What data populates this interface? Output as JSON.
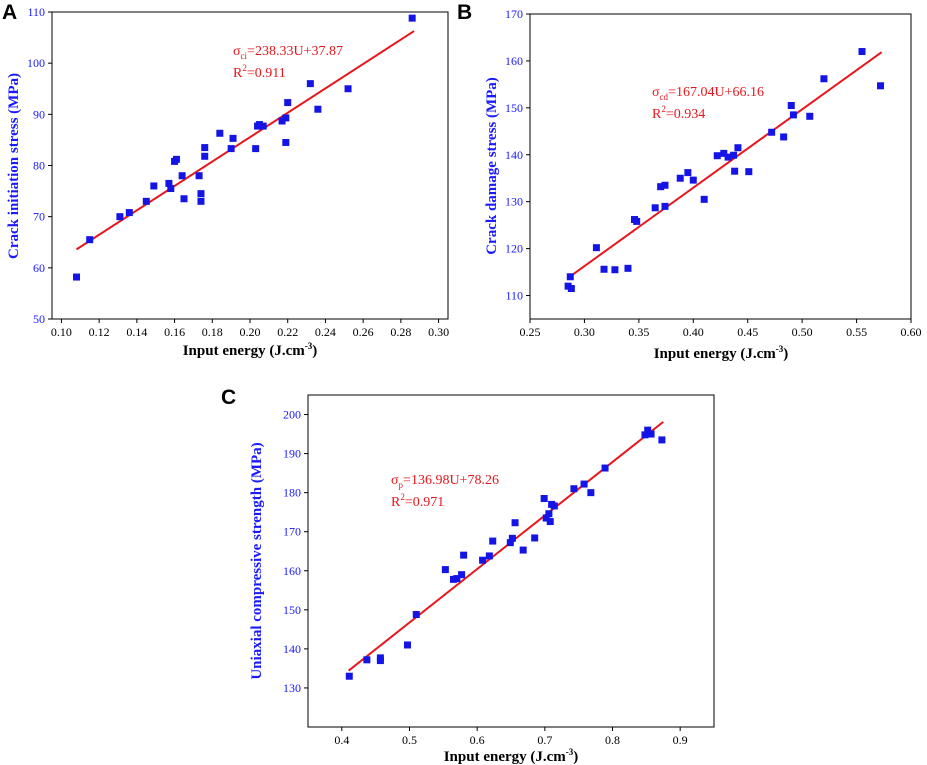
{
  "colors": {
    "points": "#1414e6",
    "fit": "#e8161c",
    "yaxis": "#1a1aff",
    "frame": "#000000"
  },
  "chart_data": [
    {
      "panel": "A",
      "type": "scatter",
      "xlabel": "Input energy (J.cm",
      "xlabel_sup": "-3",
      "xlabel_end": ")",
      "ylabel": "Crack initiation stress (MPa)",
      "xlim": [
        0.095,
        0.305
      ],
      "ylim": [
        50,
        110
      ],
      "xticks": [
        0.1,
        0.12,
        0.14,
        0.16,
        0.18,
        0.2,
        0.22,
        0.24,
        0.26,
        0.28,
        0.3
      ],
      "xtick_labels": [
        "0.10",
        "0.12",
        "0.14",
        "0.16",
        "0.18",
        "0.20",
        "0.22",
        "0.24",
        "0.26",
        "0.28",
        "0.30"
      ],
      "yticks": [
        50,
        60,
        70,
        80,
        90,
        100,
        110
      ],
      "ytick_labels": [
        "50",
        "60",
        "70",
        "80",
        "90",
        "100",
        "110"
      ],
      "eq_symbol": "σ",
      "eq_sub": "ci",
      "eq_rest": "=238.33U+37.87",
      "r2_prefix": "R",
      "r2_sup": "2",
      "r2_rest": "=0.911",
      "fit": {
        "slope": 238.33,
        "intercept": 37.87,
        "x_range": [
          0.108,
          0.287
        ]
      },
      "points": [
        [
          0.108,
          58.2
        ],
        [
          0.115,
          65.5
        ],
        [
          0.131,
          70.0
        ],
        [
          0.136,
          70.8
        ],
        [
          0.145,
          73.0
        ],
        [
          0.149,
          76.0
        ],
        [
          0.157,
          76.5
        ],
        [
          0.158,
          75.5
        ],
        [
          0.16,
          80.8
        ],
        [
          0.161,
          81.2
        ],
        [
          0.164,
          78.0
        ],
        [
          0.165,
          73.5
        ],
        [
          0.173,
          78.0
        ],
        [
          0.174,
          74.5
        ],
        [
          0.174,
          73.0
        ],
        [
          0.176,
          81.8
        ],
        [
          0.176,
          83.5
        ],
        [
          0.184,
          86.3
        ],
        [
          0.19,
          83.3
        ],
        [
          0.191,
          85.3
        ],
        [
          0.203,
          83.3
        ],
        [
          0.204,
          87.7
        ],
        [
          0.205,
          88.0
        ],
        [
          0.207,
          87.7
        ],
        [
          0.217,
          88.7
        ],
        [
          0.219,
          84.5
        ],
        [
          0.219,
          89.3
        ],
        [
          0.22,
          92.3
        ],
        [
          0.232,
          96.0
        ],
        [
          0.236,
          91.0
        ],
        [
          0.252,
          95.0
        ],
        [
          0.286,
          108.8
        ]
      ]
    },
    {
      "panel": "B",
      "type": "scatter",
      "xlabel": "Input energy (J.cm",
      "xlabel_sup": "-3",
      "xlabel_end": ")",
      "ylabel": "Crack damage stress (MPa)",
      "xlim": [
        0.25,
        0.6
      ],
      "ylim": [
        105,
        170
      ],
      "xticks": [
        0.25,
        0.3,
        0.35,
        0.4,
        0.45,
        0.5,
        0.55,
        0.6
      ],
      "xtick_labels": [
        "0.25",
        "0.30",
        "0.35",
        "0.40",
        "0.45",
        "0.50",
        "0.55",
        "0.60"
      ],
      "yticks": [
        110,
        120,
        130,
        140,
        150,
        160,
        170
      ],
      "ytick_labels": [
        "110",
        "120",
        "130",
        "140",
        "150",
        "160",
        "170"
      ],
      "eq_symbol": "σ",
      "eq_sub": "cd",
      "eq_rest": "=167.04U+66.16",
      "r2_prefix": "R",
      "r2_sup": "2",
      "r2_rest": "=0.934",
      "fit": {
        "slope": 167.04,
        "intercept": 66.16,
        "x_range": [
          0.287,
          0.573
        ]
      },
      "points": [
        [
          0.285,
          112.0
        ],
        [
          0.287,
          114.0
        ],
        [
          0.288,
          111.5
        ],
        [
          0.311,
          120.2
        ],
        [
          0.318,
          115.6
        ],
        [
          0.328,
          115.5
        ],
        [
          0.34,
          115.8
        ],
        [
          0.346,
          126.2
        ],
        [
          0.348,
          125.8
        ],
        [
          0.365,
          128.7
        ],
        [
          0.37,
          133.2
        ],
        [
          0.374,
          133.5
        ],
        [
          0.374,
          129.0
        ],
        [
          0.388,
          135.0
        ],
        [
          0.395,
          136.2
        ],
        [
          0.4,
          134.6
        ],
        [
          0.41,
          130.5
        ],
        [
          0.422,
          139.8
        ],
        [
          0.428,
          140.3
        ],
        [
          0.432,
          139.5
        ],
        [
          0.437,
          139.9
        ],
        [
          0.438,
          136.5
        ],
        [
          0.441,
          141.5
        ],
        [
          0.451,
          136.4
        ],
        [
          0.472,
          144.8
        ],
        [
          0.483,
          143.8
        ],
        [
          0.49,
          150.5
        ],
        [
          0.492,
          148.5
        ],
        [
          0.507,
          148.2
        ],
        [
          0.52,
          156.2
        ],
        [
          0.555,
          162.0
        ],
        [
          0.572,
          154.7
        ]
      ]
    },
    {
      "panel": "C",
      "type": "scatter",
      "xlabel": "Input energy (J.cm",
      "xlabel_sup": "-3",
      "xlabel_end": ")",
      "ylabel": "Uniaxial compressive strength (MPa)",
      "xlim": [
        0.35,
        0.95
      ],
      "ylim": [
        120,
        205
      ],
      "xticks": [
        0.4,
        0.5,
        0.6,
        0.7,
        0.8,
        0.9
      ],
      "xtick_labels": [
        "0.4",
        "0.5",
        "0.6",
        "0.7",
        "0.8",
        "0.9"
      ],
      "yticks": [
        130,
        140,
        150,
        160,
        170,
        180,
        190,
        200
      ],
      "ytick_labels": [
        "130",
        "140",
        "150",
        "160",
        "170",
        "180",
        "190",
        "200"
      ],
      "eq_symbol": "σ",
      "eq_sub": "p",
      "eq_rest": "=136.98U+78.26",
      "r2_prefix": "R",
      "r2_sup": "2",
      "r2_rest": "=0.971",
      "fit": {
        "slope": 136.98,
        "intercept": 78.26,
        "x_range": [
          0.41,
          0.875
        ]
      },
      "points": [
        [
          0.411,
          133.0
        ],
        [
          0.437,
          137.2
        ],
        [
          0.457,
          137.0
        ],
        [
          0.457,
          137.7
        ],
        [
          0.497,
          141.0
        ],
        [
          0.51,
          148.8
        ],
        [
          0.553,
          160.3
        ],
        [
          0.565,
          157.8
        ],
        [
          0.57,
          158.0
        ],
        [
          0.577,
          159.0
        ],
        [
          0.58,
          164.0
        ],
        [
          0.608,
          162.7
        ],
        [
          0.618,
          163.8
        ],
        [
          0.623,
          167.6
        ],
        [
          0.649,
          167.2
        ],
        [
          0.652,
          168.3
        ],
        [
          0.656,
          172.3
        ],
        [
          0.668,
          165.3
        ],
        [
          0.685,
          168.4
        ],
        [
          0.699,
          178.5
        ],
        [
          0.702,
          173.5
        ],
        [
          0.706,
          174.6
        ],
        [
          0.708,
          172.6
        ],
        [
          0.71,
          177.0
        ],
        [
          0.714,
          176.6
        ],
        [
          0.743,
          181.0
        ],
        [
          0.758,
          182.2
        ],
        [
          0.768,
          180.0
        ],
        [
          0.789,
          186.3
        ],
        [
          0.848,
          194.8
        ],
        [
          0.852,
          196.0
        ],
        [
          0.857,
          195.0
        ],
        [
          0.873,
          193.5
        ]
      ]
    }
  ]
}
